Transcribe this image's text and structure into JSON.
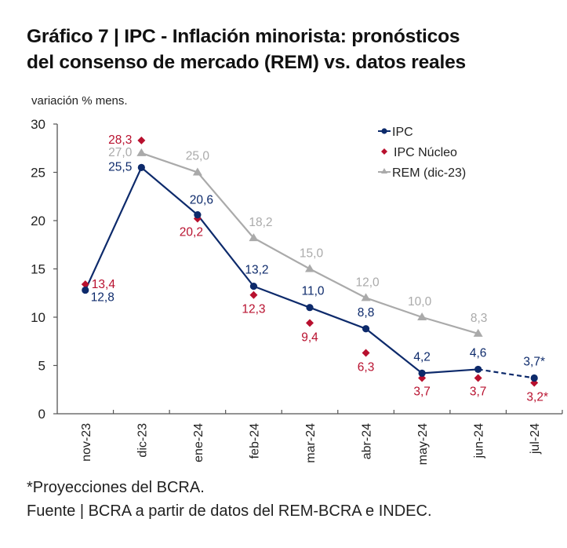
{
  "title_line1": "Gráfico 7 | IPC - Inflación minorista: pronósticos",
  "title_line2": "del consenso de mercado (REM) vs. datos reales",
  "footnote1": "*Proyecciones del BCRA.",
  "footnote2": "Fuente | BCRA a partir de datos del REM-BCRA e INDEC.",
  "colors": {
    "ipc": "#0d2a6b",
    "nucleo": "#b8102e",
    "rem": "#aaaaaa",
    "axis": "#555555"
  },
  "chart_data": {
    "type": "line",
    "title": "Gráfico 7 | IPC - Inflación minorista: pronósticos del consenso de mercado (REM) vs. datos reales",
    "ylabel": "variación % mens.",
    "xlabel": "",
    "ylim": [
      0,
      30
    ],
    "yticks": [
      0,
      5,
      10,
      15,
      20,
      25,
      30
    ],
    "categories": [
      "nov-23",
      "dic-23",
      "ene-24",
      "feb-24",
      "mar-24",
      "abr-24",
      "may-24",
      "jun-24",
      "jul-24"
    ],
    "legend_position": "top-right",
    "grid": false,
    "series": [
      {
        "name": "IPC",
        "marker": "circle",
        "line": true,
        "projected_from_index": 7,
        "values": [
          12.8,
          25.5,
          20.6,
          13.2,
          11.0,
          8.8,
          4.2,
          4.6,
          3.7
        ],
        "labels": [
          "12,8",
          "25,5",
          "20,6",
          "13,2",
          "11,0",
          "8,8",
          "4,2",
          "4,6",
          "3,7*"
        ]
      },
      {
        "name": "IPC Núcleo",
        "marker": "diamond",
        "line": false,
        "values": [
          13.4,
          28.3,
          20.2,
          12.3,
          9.4,
          6.3,
          3.7,
          3.7,
          3.2
        ],
        "labels": [
          "13,4",
          "28,3",
          "20,2",
          "12,3",
          "9,4",
          "6,3",
          "3,7",
          "3,7",
          "3,2*"
        ]
      },
      {
        "name": "REM (dic-23)",
        "marker": "triangle",
        "line": true,
        "values": [
          null,
          27.0,
          25.0,
          18.2,
          15.0,
          12.0,
          10.0,
          8.3,
          null
        ],
        "labels": [
          null,
          "27,0",
          "25,0",
          "18,2",
          "15,0",
          "12,0",
          "10,0",
          "8,3",
          null
        ]
      }
    ]
  }
}
